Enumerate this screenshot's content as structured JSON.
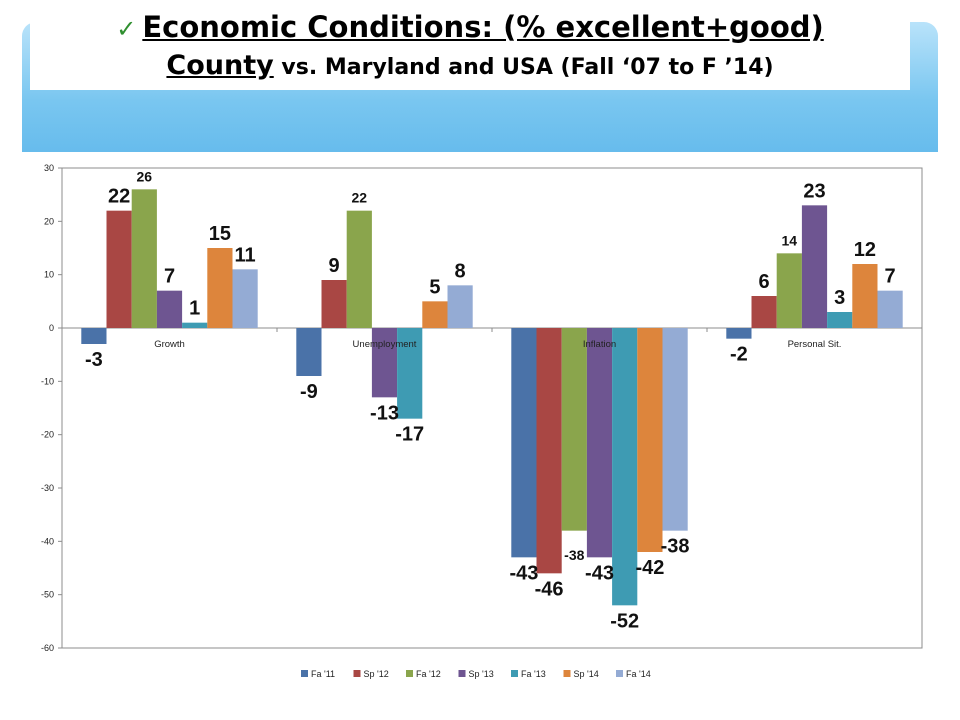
{
  "title": {
    "check_icon": "✓",
    "line1": "Economic Conditions: (% excellent+good)",
    "county": "County",
    "line2_rest": " vs. Maryland and USA (Fall ‘07 to F ’14)"
  },
  "chart_data": {
    "type": "bar",
    "categories": [
      "Growth",
      "Unemployment",
      "Inflation",
      "Personal Sit."
    ],
    "series": [
      {
        "name": "Fa '11",
        "color": "#4a72a8",
        "values": [
          -3,
          -9,
          -43,
          -2
        ]
      },
      {
        "name": "Sp '12",
        "color": "#a94744",
        "values": [
          22,
          9,
          -46,
          6
        ]
      },
      {
        "name": "Fa '12",
        "color": "#8aa54c",
        "values": [
          26,
          22,
          -38,
          14
        ]
      },
      {
        "name": "Sp '13",
        "color": "#6e5591",
        "values": [
          7,
          -13,
          -43,
          23
        ]
      },
      {
        "name": "Fa '13",
        "color": "#3e9bb3",
        "values": [
          1,
          -17,
          -52,
          3
        ]
      },
      {
        "name": "Sp '14",
        "color": "#dd853c",
        "values": [
          15,
          5,
          -42,
          12
        ]
      },
      {
        "name": "Fa '14",
        "color": "#94abd4",
        "values": [
          11,
          8,
          -38,
          7
        ]
      }
    ],
    "data_labels": [
      [
        "-3",
        "-9",
        "-43",
        "-2"
      ],
      [
        "22",
        "9",
        "-46",
        "6"
      ],
      [
        "26",
        "22",
        "-38",
        "14"
      ],
      [
        "7",
        "-13",
        "-43",
        "23"
      ],
      [
        "1",
        "-17",
        "-52",
        "3"
      ],
      [
        "15",
        "5",
        "-42",
        "12"
      ],
      [
        "11",
        "8",
        "-38",
        "7"
      ]
    ],
    "label_styles": [
      [
        "big",
        "big",
        "big",
        "big"
      ],
      [
        "big",
        "big",
        "big",
        "big"
      ],
      [
        "small",
        "small",
        "small",
        "small"
      ],
      [
        "big",
        "big",
        "big",
        "big"
      ],
      [
        "big",
        "big",
        "big",
        "big"
      ],
      [
        "big",
        "big",
        "big",
        "big"
      ],
      [
        "big",
        "big",
        "big",
        "big"
      ]
    ],
    "ylim": [
      -60,
      30
    ],
    "yticks": [
      30,
      20,
      10,
      0,
      -10,
      -20,
      -30,
      -40,
      -50,
      -60
    ],
    "legend_position": "bottom",
    "grid": false
  }
}
